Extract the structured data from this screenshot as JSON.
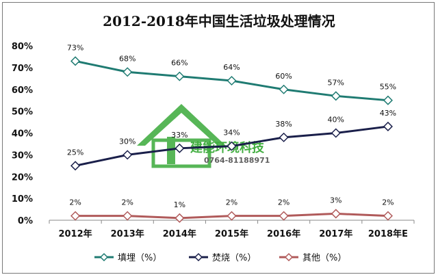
{
  "chart_data": {
    "type": "line",
    "title": "2012-2018年中国生活垃圾处理情况",
    "categories": [
      "2012年",
      "2013年",
      "2014年",
      "2015年",
      "2016年",
      "2017年",
      "2018年E"
    ],
    "ylim": [
      0,
      80
    ],
    "yticks": [
      0,
      10,
      20,
      30,
      40,
      50,
      60,
      70,
      80
    ],
    "ytick_labels": [
      "0%",
      "10%",
      "20%",
      "30%",
      "40%",
      "50%",
      "60%",
      "70%",
      "80%"
    ],
    "grid": false,
    "legend_position": "bottom",
    "series": [
      {
        "name": "填埋（%）",
        "color": "#1f7b72",
        "values": [
          73,
          68,
          66,
          64,
          60,
          57,
          55
        ],
        "labels": [
          "73%",
          "68%",
          "66%",
          "64%",
          "60%",
          "57%",
          "55%"
        ]
      },
      {
        "name": "焚烧（%）",
        "color": "#1a1f4a",
        "values": [
          25,
          30,
          33,
          34,
          38,
          40,
          43
        ],
        "labels": [
          "25%",
          "30%",
          "33%",
          "34%",
          "38%",
          "40%",
          "43%"
        ]
      },
      {
        "name": "其他（%）",
        "color": "#b05a5a",
        "values": [
          2,
          2,
          1,
          2,
          2,
          3,
          2
        ],
        "labels": [
          "2%",
          "2%",
          "1%",
          "2%",
          "2%",
          "3%",
          "2%"
        ]
      }
    ]
  },
  "watermark": {
    "company": "建能环境科技",
    "phone": "0764-81188971",
    "colors": {
      "house": "#3aaa3a",
      "text": "#22a020",
      "phone": "#444444"
    }
  }
}
